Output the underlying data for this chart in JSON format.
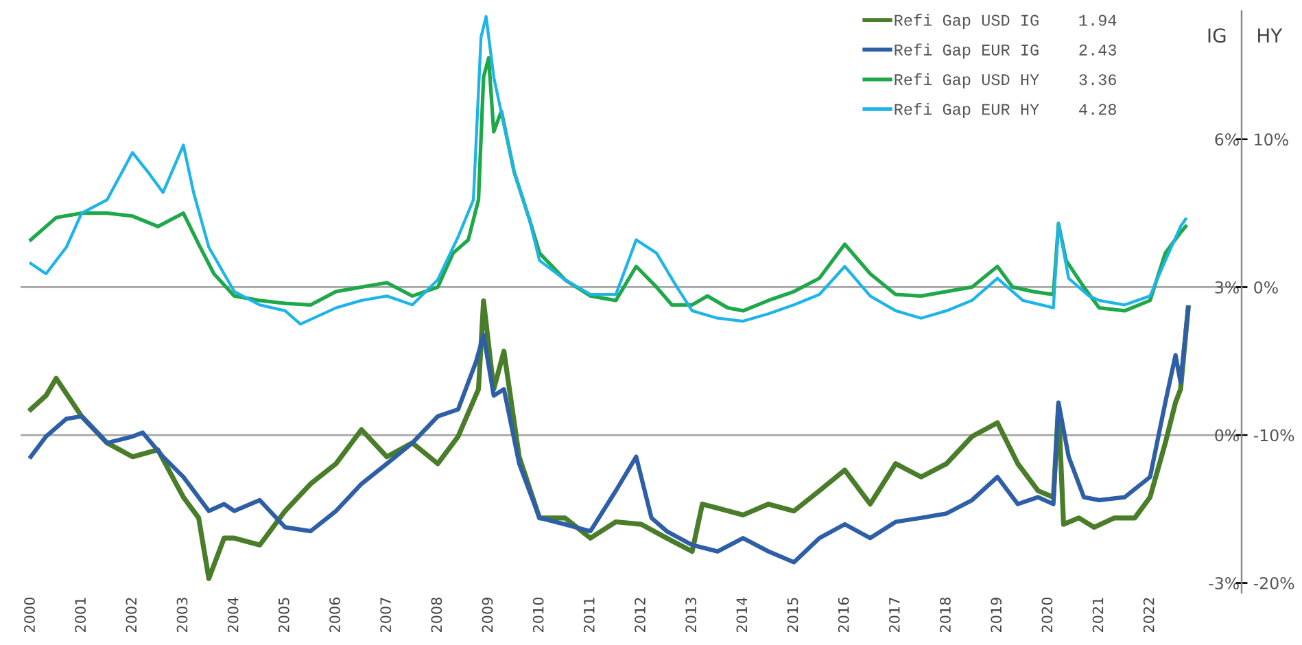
{
  "chart_data": {
    "type": "line",
    "ylabel": "IG",
    "y2label": "HY",
    "xlim": [
      1999.8,
      2023.8
    ],
    "xticks": [
      2000,
      2001,
      2002,
      2003,
      2004,
      2005,
      2006,
      2007,
      2008,
      2009,
      2010,
      2011,
      2012,
      2013,
      2014,
      2015,
      2016,
      2017,
      2018,
      2019,
      2020,
      2021,
      2022
    ],
    "ylim": [
      -3.2,
      8.6
    ],
    "yticks": [
      {
        "value": -3,
        "label": "-3%"
      },
      {
        "value": 0,
        "label": "0%"
      },
      {
        "value": 3,
        "label": "3%"
      },
      {
        "value": 6,
        "label": "6%"
      }
    ],
    "y2lim": [
      -20.67,
      18.67
    ],
    "y2ticks": [
      {
        "value": -20,
        "label": "-20%"
      },
      {
        "value": -10,
        "label": "-10%"
      },
      {
        "value": 0,
        "label": "0%"
      },
      {
        "value": 10,
        "label": "10%"
      }
    ],
    "ref_lines": [
      {
        "axis": "y",
        "value": 0,
        "color": "#a6a6a6"
      },
      {
        "axis": "y",
        "value": 3,
        "color": "#a6a6a6"
      }
    ],
    "grid": false,
    "legend": "top right",
    "line_style": "solid",
    "marker": "none",
    "series": [
      {
        "name": "Refi Gap USD IG    1.94",
        "color": "#4a7d2a",
        "x": [
          2000,
          2000.3,
          2000.5,
          2001,
          2001.5,
          2002,
          2002.5,
          2003,
          2003.3,
          2003.5,
          2003.8,
          2004,
          2004.5,
          2005,
          2005.5,
          2006,
          2006.5,
          2007,
          2007.5,
          2008,
          2008.4,
          2008.8,
          2008.9,
          2009.1,
          2009.3,
          2009.6,
          2010,
          2010.5,
          2011,
          2011.5,
          2012,
          2012.5,
          2013,
          2013.2,
          2013.5,
          2014,
          2014.5,
          2015,
          2015.5,
          2016,
          2016.5,
          2017,
          2017.5,
          2018,
          2018.5,
          2019,
          2019.4,
          2019.8,
          2020.1,
          2020.2,
          2020.3,
          2020.6,
          2020.9,
          2021.3,
          2021.7,
          2022,
          2022.3,
          2022.5,
          2022.6,
          2022.75
        ],
        "values": [
          0.52,
          0.8,
          1.15,
          0.38,
          -0.16,
          -0.44,
          -0.3,
          -1.26,
          -1.68,
          -2.91,
          -2.09,
          -2.09,
          -2.23,
          -1.54,
          -0.99,
          -0.58,
          0.11,
          -0.44,
          -0.16,
          -0.58,
          -0.03,
          0.93,
          2.72,
          0.93,
          1.7,
          -0.44,
          -1.68,
          -1.68,
          -2.09,
          -1.76,
          -1.81,
          -2.09,
          -2.36,
          -1.4,
          -1.48,
          -1.62,
          -1.4,
          -1.54,
          -1.13,
          -0.71,
          -1.4,
          -0.58,
          -0.85,
          -0.58,
          -0.03,
          0.25,
          -0.58,
          -1.13,
          -1.26,
          0.6,
          -1.81,
          -1.68,
          -1.87,
          -1.68,
          -1.68,
          -1.26,
          -0.16,
          0.66,
          0.93,
          2.58
        ]
      },
      {
        "name": "Refi Gap EUR IG    2.43",
        "color": "#2e5fa6",
        "x": [
          2000,
          2000.3,
          2000.7,
          2001,
          2001.5,
          2002,
          2002.2,
          2002.6,
          2003,
          2003.5,
          2003.8,
          2004,
          2004.5,
          2005,
          2005.5,
          2006,
          2006.5,
          2007,
          2007.5,
          2008,
          2008.4,
          2008.75,
          2008.9,
          2009.1,
          2009.3,
          2009.6,
          2010,
          2010.5,
          2011,
          2011.5,
          2011.9,
          2012.2,
          2012.5,
          2013,
          2013.5,
          2014,
          2014.5,
          2015,
          2015.5,
          2016,
          2016.5,
          2017,
          2017.5,
          2018,
          2018.5,
          2019,
          2019.4,
          2019.8,
          2020.1,
          2020.2,
          2020.4,
          2020.7,
          2021,
          2021.5,
          2022,
          2022.3,
          2022.5,
          2022.6,
          2022.75
        ],
        "values": [
          -0.44,
          -0.03,
          0.33,
          0.38,
          -0.16,
          -0.03,
          0.05,
          -0.44,
          -0.85,
          -1.54,
          -1.4,
          -1.54,
          -1.32,
          -1.87,
          -1.95,
          -1.54,
          -0.99,
          -0.58,
          -0.16,
          0.38,
          0.52,
          1.48,
          2.03,
          0.8,
          0.93,
          -0.58,
          -1.68,
          -1.81,
          -1.95,
          -1.13,
          -0.44,
          -1.68,
          -1.95,
          -2.23,
          -2.36,
          -2.09,
          -2.36,
          -2.58,
          -2.09,
          -1.81,
          -2.09,
          -1.76,
          -1.68,
          -1.59,
          -1.32,
          -0.85,
          -1.4,
          -1.26,
          -1.4,
          0.66,
          -0.44,
          -1.26,
          -1.32,
          -1.26,
          -0.85,
          0.66,
          1.62,
          1.07,
          2.58
        ]
      },
      {
        "name": "Refi Gap USD HY    3.36",
        "color": "#1ea84a",
        "axis": "y2",
        "x": [
          2000,
          2000.5,
          2001,
          2001.5,
          2002,
          2002.5,
          2003,
          2003.3,
          2003.6,
          2004,
          2004.5,
          2005,
          2005.5,
          2006,
          2006.5,
          2007,
          2007.5,
          2008,
          2008.3,
          2008.6,
          2008.8,
          2008.9,
          2009,
          2009.1,
          2009.25,
          2009.5,
          2009.8,
          2010,
          2010.5,
          2011,
          2011.5,
          2011.9,
          2012.3,
          2012.6,
          2013,
          2013.3,
          2013.7,
          2014,
          2014.5,
          2015,
          2015.5,
          2016,
          2016.5,
          2017,
          2017.5,
          2018,
          2018.5,
          2019,
          2019.3,
          2019.7,
          2020.1,
          2020.2,
          2020.35,
          2020.7,
          2021,
          2021.5,
          2022,
          2022.3,
          2022.6,
          2022.7
        ],
        "values": [
          3.2,
          4.7,
          5.0,
          5.0,
          4.8,
          4.1,
          5.0,
          2.9,
          0.9,
          -0.6,
          -0.9,
          -1.1,
          -1.2,
          -0.3,
          0,
          0.3,
          -0.6,
          0,
          2.3,
          3.2,
          5.9,
          14.2,
          15.5,
          10.5,
          11.9,
          7.8,
          4.6,
          2.3,
          0.5,
          -0.6,
          -0.9,
          1.4,
          0,
          -1.2,
          -1.2,
          -0.6,
          -1.4,
          -1.6,
          -0.9,
          -0.3,
          0.6,
          2.9,
          0.9,
          -0.5,
          -0.6,
          -0.3,
          0,
          1.4,
          0,
          -0.3,
          -0.5,
          4.3,
          1.8,
          0,
          -1.4,
          -1.6,
          -0.9,
          2.3,
          3.7,
          4.1
        ]
      },
      {
        "name": "Refi Gap EUR HY    4.28",
        "color": "#1eb4e8",
        "axis": "y2",
        "x": [
          2000,
          2000.3,
          2000.7,
          2001,
          2001.5,
          2002,
          2002.3,
          2002.6,
          2003,
          2003.2,
          2003.5,
          2003.8,
          2004,
          2004.5,
          2005,
          2005.3,
          2006,
          2006.5,
          2007,
          2007.5,
          2008,
          2008.4,
          2008.7,
          2008.85,
          2008.95,
          2009.1,
          2009.3,
          2009.5,
          2009.8,
          2010,
          2010.5,
          2011,
          2011.5,
          2011.9,
          2012.3,
          2012.7,
          2013,
          2013.5,
          2014,
          2014.5,
          2015,
          2015.5,
          2016,
          2016.5,
          2017,
          2017.5,
          2018,
          2018.5,
          2019,
          2019.5,
          2020.1,
          2020.2,
          2020.4,
          2020.8,
          2021,
          2021.5,
          2022,
          2022.3,
          2022.6,
          2022.7
        ],
        "values": [
          1.6,
          0.9,
          2.7,
          5.0,
          5.9,
          9.1,
          7.8,
          6.4,
          9.6,
          6.4,
          2.7,
          0.9,
          -0.3,
          -1.2,
          -1.6,
          -2.5,
          -1.4,
          -0.9,
          -0.6,
          -1.2,
          0.5,
          3.4,
          5.9,
          16.9,
          18.3,
          14.2,
          11.0,
          7.8,
          4.6,
          1.8,
          0.5,
          -0.5,
          -0.5,
          3.2,
          2.3,
          0,
          -1.6,
          -2.1,
          -2.3,
          -1.8,
          -1.2,
          -0.5,
          1.4,
          -0.6,
          -1.6,
          -2.1,
          -1.6,
          -0.9,
          0.6,
          -0.9,
          -1.4,
          4.3,
          0.6,
          -0.6,
          -0.9,
          -1.2,
          -0.6,
          1.8,
          4.1,
          4.6
        ]
      }
    ]
  }
}
